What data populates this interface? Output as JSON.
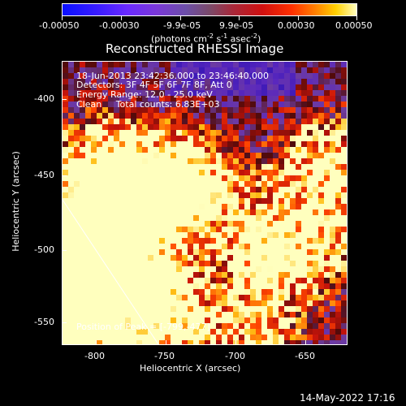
{
  "colorbar": {
    "tick_labels": [
      "-0.00050",
      "-0.00030",
      "-9.9e-05",
      "9.9e-05",
      "0.00030",
      "0.00050"
    ],
    "unit_label": "(photons cm",
    "unit_exp1": "-2",
    "unit_mid1": " s",
    "unit_exp2": "-1",
    "unit_mid2": " asec",
    "unit_exp3": "-2",
    "unit_end": ")"
  },
  "plot": {
    "title": "Reconstructed RHESSI Image",
    "info_lines": [
      "18-Jun-2013 23:42:36.000 to 23:46:40.000",
      "Detectors: 3F 4F 5F 6F 7F 8F, Att 0",
      "Energy Range: 12.0 - 25.0 keV",
      "Clean     Total counts: 6.83E+03"
    ],
    "peak_label": "Position of Peak = [-799,-477]",
    "xlabel": "Heliocentric X (arcsec)",
    "ylabel": "Heliocentric Y (arcsec)",
    "x_ticks": [
      "-800",
      "-750",
      "-700",
      "-650"
    ],
    "y_ticks": [
      "-400",
      "-450",
      "-500",
      "-550"
    ]
  },
  "footer": {
    "date_stamp": "14-May-2022 17:16"
  }
}
